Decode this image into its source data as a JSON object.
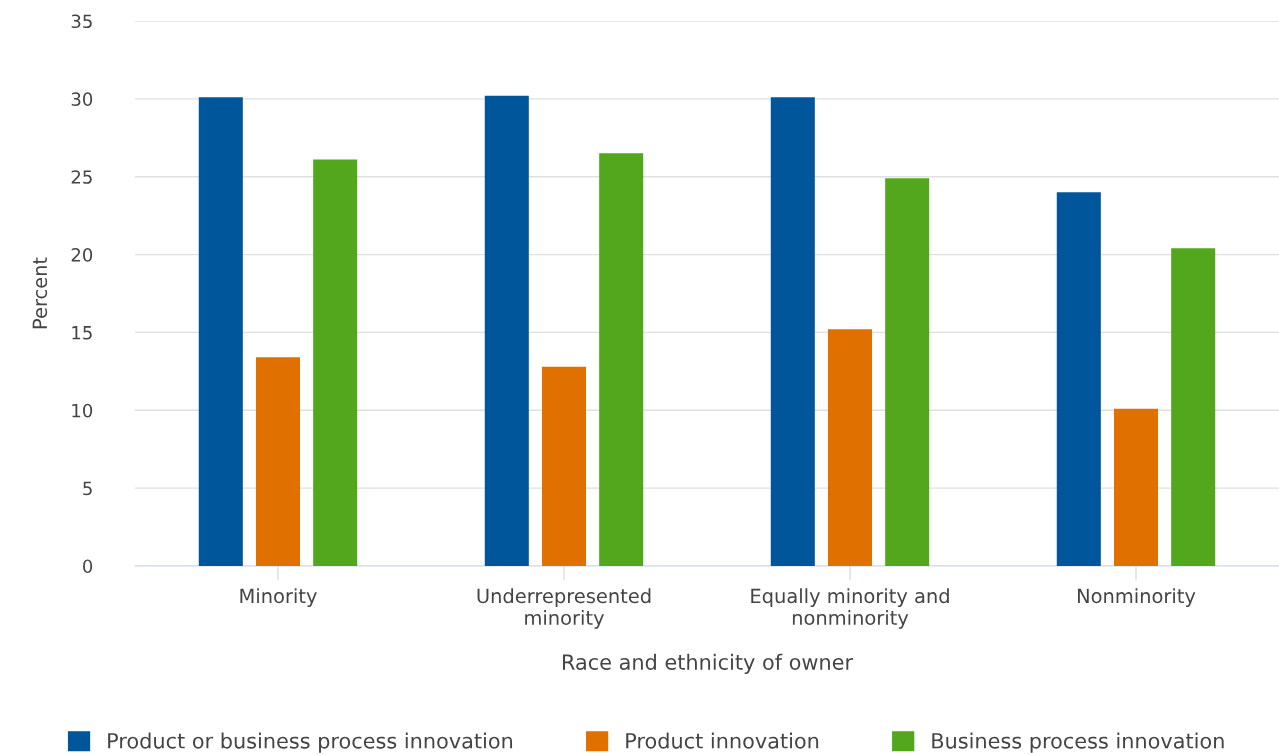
{
  "chart_data": {
    "type": "bar",
    "xlabel": "Race and ethnicity of owner",
    "ylabel": "Percent",
    "categories": [
      "Minority",
      "Underrepresented\nminority",
      "Equally minority and\nnonminority",
      "Nonminority"
    ],
    "series": [
      {
        "name": "Product or business process innovation",
        "color": "#00569b",
        "values": [
          30.1,
          30.2,
          30.1,
          24.0
        ]
      },
      {
        "name": "Product innovation",
        "color": "#e07000",
        "values": [
          13.4,
          12.8,
          15.2,
          10.1
        ]
      },
      {
        "name": "Business process innovation",
        "color": "#52a71c",
        "values": [
          26.1,
          26.5,
          24.9,
          20.4
        ]
      }
    ],
    "ylim": [
      0,
      35
    ],
    "yticks": [
      0,
      5,
      10,
      15,
      20,
      25,
      30,
      35
    ],
    "grid": "y",
    "legend": "bottom"
  }
}
